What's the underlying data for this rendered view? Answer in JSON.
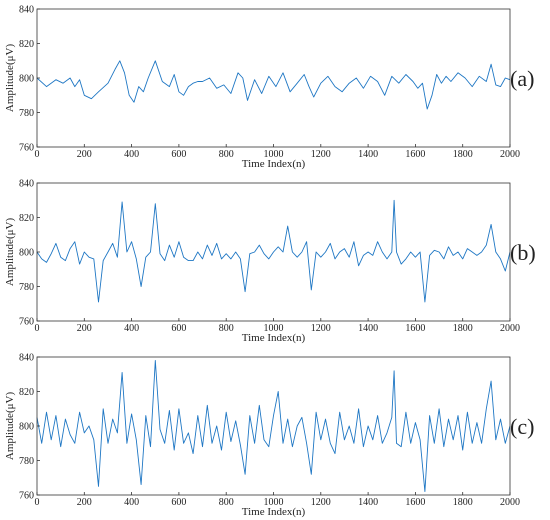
{
  "chart_data": [
    {
      "type": "line",
      "panel_label": "(a)",
      "xlabel": "Time Index(n)",
      "ylabel": "Amplitude(μV)",
      "xlim": [
        0,
        2000
      ],
      "ylim": [
        760,
        840
      ],
      "xticks": [
        0,
        200,
        400,
        600,
        800,
        1000,
        1200,
        1400,
        1600,
        1800,
        2000
      ],
      "yticks": [
        760,
        780,
        800,
        820,
        840
      ],
      "grid": false,
      "series": [
        {
          "color": "#1f77c4",
          "x": [
            0,
            40,
            80,
            110,
            140,
            160,
            180,
            200,
            230,
            260,
            300,
            330,
            350,
            370,
            390,
            410,
            430,
            450,
            470,
            500,
            530,
            560,
            580,
            600,
            620,
            640,
            660,
            680,
            700,
            730,
            760,
            790,
            820,
            850,
            870,
            890,
            920,
            950,
            980,
            1010,
            1040,
            1070,
            1100,
            1130,
            1150,
            1170,
            1200,
            1230,
            1260,
            1290,
            1320,
            1350,
            1380,
            1410,
            1440,
            1470,
            1500,
            1530,
            1560,
            1590,
            1610,
            1630,
            1650,
            1670,
            1690,
            1710,
            1730,
            1750,
            1780,
            1810,
            1840,
            1870,
            1900,
            1920,
            1940,
            1960,
            1980,
            2000
          ],
          "y": [
            800,
            795,
            799,
            797,
            800,
            795,
            799,
            790,
            788,
            792,
            797,
            805,
            810,
            803,
            790,
            786,
            795,
            792,
            800,
            810,
            798,
            795,
            802,
            792,
            790,
            795,
            797,
            798,
            798,
            800,
            794,
            796,
            791,
            803,
            800,
            787,
            799,
            791,
            801,
            795,
            803,
            792,
            797,
            802,
            795,
            789,
            797,
            801,
            795,
            792,
            797,
            800,
            794,
            801,
            798,
            790,
            801,
            797,
            802,
            798,
            794,
            797,
            782,
            790,
            802,
            797,
            801,
            798,
            803,
            800,
            795,
            801,
            798,
            808,
            796,
            795,
            800,
            799
          ]
        }
      ]
    },
    {
      "type": "line",
      "panel_label": "(b)",
      "xlabel": "Time Index(n)",
      "ylabel": "Amplitude(μV)",
      "xlim": [
        0,
        2000
      ],
      "ylim": [
        760,
        840
      ],
      "xticks": [
        0,
        200,
        400,
        600,
        800,
        1000,
        1200,
        1400,
        1600,
        1800,
        2000
      ],
      "yticks": [
        760,
        780,
        800,
        820,
        840
      ],
      "grid": false,
      "series": [
        {
          "color": "#1f77c4",
          "x": [
            0,
            20,
            40,
            60,
            80,
            100,
            120,
            140,
            160,
            180,
            200,
            220,
            240,
            260,
            280,
            300,
            320,
            340,
            360,
            380,
            400,
            420,
            440,
            460,
            480,
            500,
            520,
            540,
            560,
            580,
            600,
            620,
            640,
            660,
            680,
            700,
            720,
            740,
            760,
            780,
            800,
            820,
            840,
            860,
            880,
            900,
            920,
            940,
            960,
            980,
            1000,
            1020,
            1040,
            1060,
            1080,
            1100,
            1120,
            1140,
            1160,
            1180,
            1200,
            1220,
            1240,
            1260,
            1280,
            1300,
            1320,
            1340,
            1360,
            1380,
            1400,
            1420,
            1440,
            1460,
            1480,
            1500,
            1510,
            1520,
            1540,
            1560,
            1580,
            1600,
            1620,
            1640,
            1660,
            1680,
            1700,
            1720,
            1740,
            1760,
            1780,
            1800,
            1820,
            1840,
            1860,
            1880,
            1900,
            1920,
            1940,
            1960,
            1980,
            2000
          ],
          "y": [
            800,
            796,
            794,
            799,
            805,
            797,
            795,
            802,
            806,
            793,
            800,
            797,
            796,
            771,
            795,
            800,
            805,
            797,
            829,
            800,
            806,
            796,
            780,
            797,
            800,
            828,
            799,
            795,
            804,
            797,
            806,
            797,
            795,
            795,
            800,
            796,
            804,
            798,
            805,
            796,
            799,
            796,
            800,
            796,
            777,
            799,
            800,
            804,
            799,
            796,
            800,
            803,
            800,
            815,
            800,
            797,
            800,
            806,
            778,
            800,
            797,
            800,
            805,
            796,
            800,
            802,
            797,
            806,
            792,
            798,
            800,
            798,
            806,
            800,
            796,
            800,
            830,
            800,
            793,
            796,
            800,
            797,
            800,
            771,
            798,
            801,
            800,
            796,
            803,
            798,
            800,
            796,
            802,
            800,
            798,
            800,
            804,
            816,
            800,
            796,
            789,
            800
          ]
        }
      ]
    },
    {
      "type": "line",
      "panel_label": "(c)",
      "xlabel": "Time Index(n)",
      "ylabel": "Amplitude(μV)",
      "xlim": [
        0,
        2000
      ],
      "ylim": [
        760,
        840
      ],
      "xticks": [
        0,
        200,
        400,
        600,
        800,
        1000,
        1200,
        1400,
        1600,
        1800,
        2000
      ],
      "yticks": [
        760,
        780,
        800,
        820,
        840
      ],
      "grid": false,
      "series": [
        {
          "color": "#1f77c4",
          "x": [
            0,
            20,
            40,
            60,
            80,
            100,
            120,
            140,
            160,
            180,
            200,
            220,
            240,
            260,
            280,
            300,
            320,
            340,
            360,
            380,
            400,
            420,
            440,
            460,
            480,
            500,
            520,
            540,
            560,
            580,
            600,
            620,
            640,
            660,
            680,
            700,
            720,
            740,
            760,
            780,
            800,
            820,
            840,
            860,
            880,
            900,
            920,
            940,
            960,
            980,
            1000,
            1020,
            1040,
            1060,
            1080,
            1100,
            1120,
            1140,
            1160,
            1180,
            1200,
            1220,
            1240,
            1260,
            1280,
            1300,
            1320,
            1340,
            1360,
            1380,
            1400,
            1420,
            1440,
            1460,
            1480,
            1500,
            1510,
            1520,
            1540,
            1560,
            1580,
            1600,
            1620,
            1640,
            1660,
            1680,
            1700,
            1720,
            1740,
            1760,
            1780,
            1800,
            1820,
            1840,
            1860,
            1880,
            1900,
            1920,
            1940,
            1960,
            1980,
            2000
          ],
          "y": [
            805,
            790,
            808,
            792,
            806,
            788,
            804,
            795,
            790,
            808,
            796,
            800,
            792,
            765,
            810,
            790,
            804,
            796,
            831,
            790,
            807,
            792,
            766,
            806,
            788,
            838,
            798,
            790,
            809,
            786,
            810,
            790,
            796,
            784,
            806,
            788,
            812,
            790,
            800,
            786,
            808,
            791,
            803,
            789,
            772,
            806,
            790,
            812,
            792,
            788,
            806,
            820,
            790,
            804,
            788,
            800,
            805,
            790,
            772,
            808,
            792,
            804,
            790,
            784,
            808,
            792,
            800,
            790,
            810,
            788,
            800,
            792,
            806,
            790,
            796,
            805,
            832,
            790,
            788,
            808,
            790,
            802,
            792,
            762,
            806,
            790,
            810,
            788,
            804,
            792,
            806,
            786,
            808,
            790,
            802,
            790,
            810,
            826,
            792,
            804,
            790,
            800
          ]
        }
      ]
    }
  ]
}
